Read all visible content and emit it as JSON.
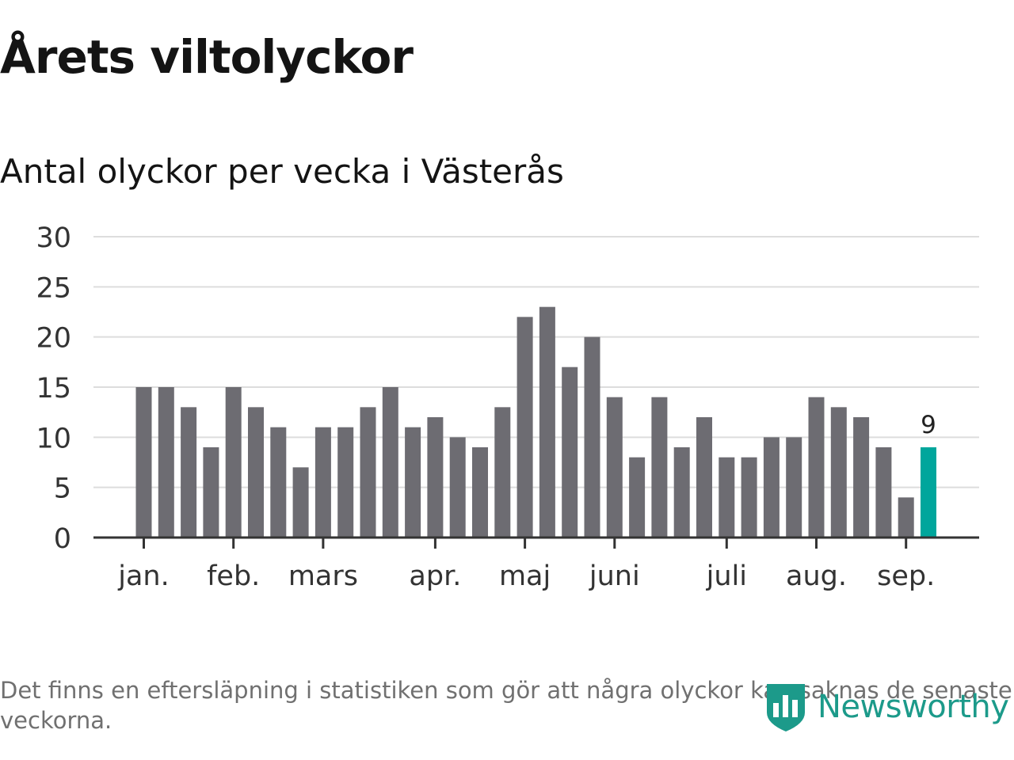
{
  "header": {
    "title": "Årets viltolyckor",
    "subtitle": "Antal olyckor per vecka i Västerås"
  },
  "footer": {
    "note": "Det finns en eftersläpning i statistiken som gör att några olyckor kan saknas de senaste veckorna.",
    "brand": "Newsworthy",
    "brand_icon": "bar-chart-shield-icon",
    "brand_color": "#1c9a8a"
  },
  "chart_data": {
    "type": "bar",
    "ylim": [
      0,
      30
    ],
    "yticks": [
      0,
      5,
      10,
      15,
      20,
      25,
      30
    ],
    "grid": true,
    "months": [
      {
        "label": "jan.",
        "week_index": 0
      },
      {
        "label": "feb.",
        "week_index": 4
      },
      {
        "label": "mars",
        "week_index": 8
      },
      {
        "label": "apr.",
        "week_index": 13
      },
      {
        "label": "maj",
        "week_index": 17
      },
      {
        "label": "juni",
        "week_index": 21
      },
      {
        "label": "juli",
        "week_index": 26
      },
      {
        "label": "aug.",
        "week_index": 30
      },
      {
        "label": "sep.",
        "week_index": 34
      }
    ],
    "values": [
      15,
      15,
      13,
      9,
      15,
      13,
      11,
      7,
      11,
      11,
      13,
      15,
      11,
      12,
      10,
      9,
      13,
      22,
      23,
      17,
      20,
      14,
      8,
      14,
      9,
      12,
      8,
      8,
      10,
      10,
      14,
      13,
      12,
      9,
      4,
      9
    ],
    "highlight_last": true,
    "highlight_label": "9",
    "colors": {
      "bar": "#6d6c72",
      "highlight": "#00a69c",
      "grid": "#dddddd",
      "axis": "#333333"
    }
  }
}
